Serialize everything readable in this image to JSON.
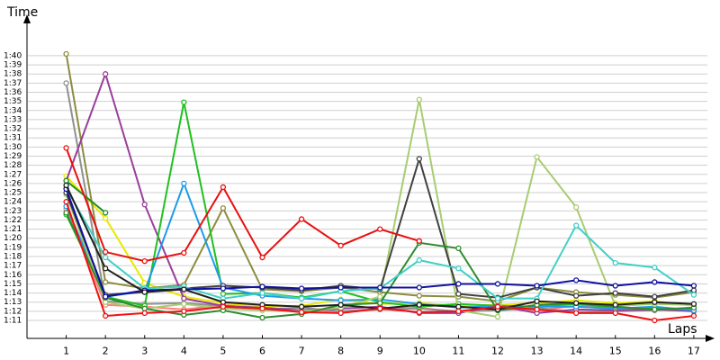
{
  "chart_data": {
    "type": "line",
    "y_label": "Time",
    "x_label": "Laps",
    "x": [
      1,
      2,
      3,
      4,
      5,
      6,
      7,
      8,
      9,
      10,
      11,
      12,
      13,
      14,
      15,
      16,
      17
    ],
    "xlim": [
      0,
      17.3
    ],
    "xticks": [
      1,
      2,
      3,
      4,
      5,
      6,
      7,
      8,
      9,
      10,
      11,
      12,
      13,
      14,
      15,
      16,
      17
    ],
    "ylim": [
      69,
      103
    ],
    "yticks": [
      {
        "value": 71,
        "label": "1:11"
      },
      {
        "value": 72,
        "label": "1:12"
      },
      {
        "value": 73,
        "label": "1:13"
      },
      {
        "value": 74,
        "label": "1:14"
      },
      {
        "value": 75,
        "label": "1:15"
      },
      {
        "value": 76,
        "label": "1:16"
      },
      {
        "value": 77,
        "label": "1:17"
      },
      {
        "value": 78,
        "label": "1:18"
      },
      {
        "value": 79,
        "label": "1:19"
      },
      {
        "value": 80,
        "label": "1:20"
      },
      {
        "value": 81,
        "label": "1:21"
      },
      {
        "value": 82,
        "label": "1:22"
      },
      {
        "value": 83,
        "label": "1:23"
      },
      {
        "value": 84,
        "label": "1:24"
      },
      {
        "value": 85,
        "label": "1:25"
      },
      {
        "value": 86,
        "label": "1:26"
      },
      {
        "value": 87,
        "label": "1:27"
      },
      {
        "value": 88,
        "label": "1:28"
      },
      {
        "value": 89,
        "label": "1:29"
      },
      {
        "value": 90,
        "label": "1:30"
      },
      {
        "value": 91,
        "label": "1:31"
      },
      {
        "value": 92,
        "label": "1:32"
      },
      {
        "value": 93,
        "label": "1:33"
      },
      {
        "value": 94,
        "label": "1:34"
      },
      {
        "value": 95,
        "label": "1:35"
      },
      {
        "value": 96,
        "label": "1:36"
      },
      {
        "value": 97,
        "label": "1:37"
      },
      {
        "value": 98,
        "label": "1:38"
      },
      {
        "value": 99,
        "label": "1:39"
      },
      {
        "value": 100,
        "label": "1:40"
      }
    ],
    "grid": true,
    "series": [
      {
        "color": "#e8e800",
        "values": [
          86.8,
          82.2,
          75.1,
          73.6,
          72.9,
          72.5,
          72.6,
          73.3,
          72.8,
          72.9,
          72.6,
          72.7,
          72.9,
          73.2,
          72.9,
          73.1,
          72.6
        ]
      },
      {
        "color": "#ff8080",
        "values": [
          83.2,
          72.7,
          72.5,
          72.2,
          72.7,
          72.2,
          72.1,
          72.0,
          72.3,
          72.4,
          71.9,
          72.3,
          72.1,
          72.6,
          72.2,
          72.3,
          72.1
        ]
      },
      {
        "color": "#909090",
        "values": [
          97.0,
          73.1,
          72.8,
          72.9,
          72.6,
          72.2,
          72.4,
          72.0,
          72.2,
          72.3,
          72.0,
          72.1,
          72.4,
          71.9,
          72.0,
          72.1,
          72.4
        ]
      },
      {
        "color": "#8c8c40",
        "values": [
          100.2,
          75.2,
          74.5,
          74.9,
          83.3,
          74.4,
          74.2,
          74.6,
          74.1,
          73.7,
          73.6,
          73.1,
          74.6,
          74.1,
          73.8,
          73.5,
          74.1
        ]
      },
      {
        "color": "#9a3e9a",
        "values": [
          86.3,
          98.0,
          83.7,
          73.4,
          72.6,
          72.4,
          72.1,
          72.3,
          72.5,
          71.8,
          71.8,
          72.6,
          71.8,
          72.2,
          72.1,
          72.2,
          72.0
        ]
      },
      {
        "color": "#20c020",
        "values": [
          82.6,
          73.6,
          72.6,
          94.9,
          73.9,
          74.0,
          73.5,
          74.2,
          73.0,
          72.5,
          72.8,
          72.6,
          72.5,
          72.8,
          72.4,
          72.3,
          72.2
        ]
      },
      {
        "color": "#1e9be8",
        "values": [
          83.5,
          73.6,
          74.2,
          86.0,
          74.6,
          73.7,
          73.4,
          73.2,
          73.3,
          72.8,
          72.4,
          72.6,
          72.5,
          72.5,
          72.3,
          72.5,
          72.1
        ]
      },
      {
        "color": "#a8cc70",
        "values": [
          84.8,
          73.0,
          72.3,
          72.8,
          72.3,
          72.1,
          72.0,
          72.4,
          73.6,
          95.2,
          72.1,
          71.4,
          88.9,
          83.4,
          72.6,
          72.8,
          72.7
        ]
      },
      {
        "color": "#404040",
        "values": [
          85.0,
          73.8,
          74.1,
          74.5,
          74.8,
          74.6,
          74.3,
          74.8,
          74.4,
          88.7,
          73.9,
          73.5,
          74.6,
          73.7,
          74.0,
          73.6,
          74.3
        ]
      },
      {
        "color": "#2e8b2e",
        "values": [
          82.8,
          73.5,
          72.3,
          71.6,
          72.1,
          71.3,
          71.7,
          72.7,
          72.9,
          79.5,
          78.9,
          72.1,
          72.7,
          72.9,
          72.5,
          72.2,
          72.4
        ]
      },
      {
        "color": "#228b22",
        "values": [
          86.3,
          82.8,
          null,
          null,
          null,
          null,
          null,
          null,
          null,
          null,
          null,
          null,
          null,
          null,
          null,
          null,
          null
        ]
      },
      {
        "color": "#40d0c8",
        "values": [
          85.5,
          77.9,
          74.5,
          74.7,
          73.4,
          74.0,
          73.4,
          74.2,
          74.5,
          77.6,
          76.7,
          73.4,
          73.4,
          81.4,
          77.3,
          76.8,
          73.8
        ]
      },
      {
        "color": "#1010a0",
        "values": [
          85.4,
          73.6,
          74.3,
          74.4,
          74.5,
          74.7,
          74.5,
          74.6,
          74.6,
          74.6,
          75.0,
          75.0,
          74.8,
          75.4,
          74.8,
          75.2,
          74.8
        ]
      },
      {
        "color": "#202020",
        "values": [
          85.8,
          76.7,
          74.1,
          74.4,
          73.0,
          72.7,
          72.5,
          72.7,
          72.3,
          72.7,
          72.5,
          72.2,
          73.1,
          72.9,
          72.7,
          73.0,
          72.8
        ]
      },
      {
        "color": "#f01010",
        "values": [
          84.0,
          71.5,
          71.8,
          72.0,
          72.5,
          72.3,
          71.9,
          71.8,
          72.3,
          71.9,
          72.0,
          72.5,
          72.2,
          71.8,
          71.8,
          71.0,
          71.5
        ]
      },
      {
        "color": "#e81010",
        "values": [
          89.9,
          78.5,
          77.5,
          78.4,
          85.6,
          77.9,
          82.1,
          79.2,
          81.0,
          79.7,
          null,
          null,
          null,
          null,
          null,
          null,
          null
        ]
      }
    ]
  }
}
